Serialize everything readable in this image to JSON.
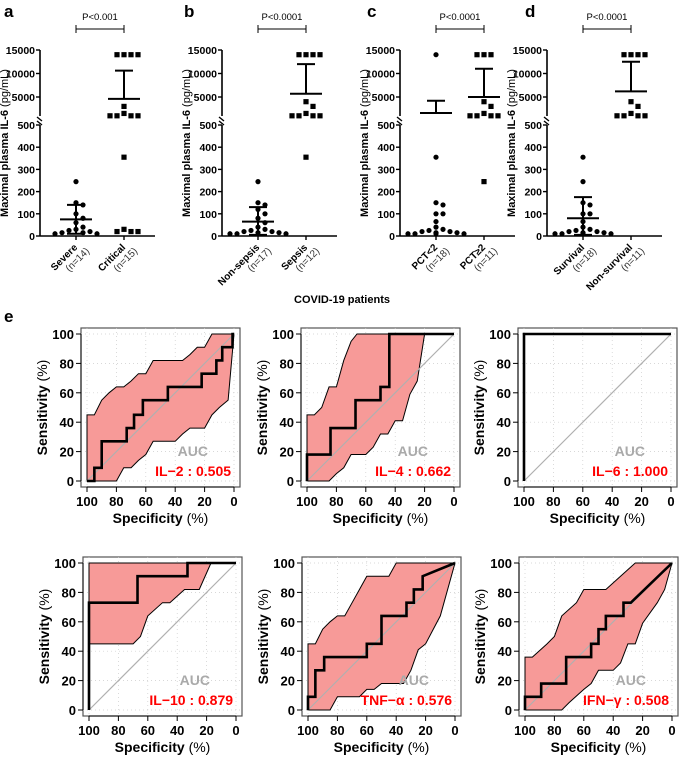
{
  "figure": {
    "panel_letters": [
      "a",
      "b",
      "c",
      "d",
      "e"
    ],
    "group_caption": "COVID-19 patients"
  },
  "colors": {
    "ink": "#000000",
    "band": "#f79a98",
    "auc_label": "#aaaaaa",
    "auc_value": "#ff0000",
    "grid": "#cccccc",
    "diagonal": "#b0b0b0"
  },
  "chart_data": [
    {
      "type": "scatter",
      "subtype": "dot-plot-broken-axis",
      "panel": "a",
      "ylabel_main": "Maximal plasma IL-6",
      "ylabel_unit": "(pg/mL)",
      "yticks_lower": [
        0,
        100,
        200,
        300,
        400,
        500
      ],
      "yticks_upper": [
        5000,
        10000,
        15000
      ],
      "ylim": [
        0,
        15000
      ],
      "axis_break": [
        500,
        800
      ],
      "pvalue": "P<0.001",
      "groups": [
        {
          "label": "Severe",
          "n": "(n=14)",
          "marker": "circle",
          "values": [
            245,
            150,
            140,
            100,
            80,
            60,
            40,
            30,
            25,
            20,
            15,
            15,
            10,
            10
          ],
          "mean": 75,
          "sd_upper": 140,
          "sd_lower": 10
        },
        {
          "label": "Critical",
          "n": "(n=15)",
          "marker": "square",
          "values": [
            14000,
            14000,
            14000,
            14000,
            3000,
            1500,
            1000,
            1000,
            1000,
            1000,
            355,
            30,
            20,
            20,
            20
          ],
          "mean": 4600,
          "sd_upper": 10600,
          "sd_lower": null
        }
      ]
    },
    {
      "type": "scatter",
      "subtype": "dot-plot-broken-axis",
      "panel": "b",
      "ylabel_main": "Maximal plasma IL-6",
      "ylabel_unit": "(pg/mL)",
      "yticks_lower": [
        0,
        100,
        200,
        300,
        400,
        500
      ],
      "yticks_upper": [
        5000,
        10000,
        15000
      ],
      "ylim": [
        0,
        15000
      ],
      "axis_break": [
        500,
        800
      ],
      "pvalue": "P<0.0001",
      "groups": [
        {
          "label": "Non-sepsis",
          "n": "(n=17)",
          "marker": "circle",
          "values": [
            245,
            150,
            140,
            120,
            100,
            80,
            60,
            40,
            30,
            25,
            20,
            20,
            15,
            15,
            10,
            10,
            10
          ],
          "mean": 65,
          "sd_upper": 130,
          "sd_lower": 5
        },
        {
          "label": "Sepsis",
          "n": "(n=12)",
          "marker": "square",
          "values": [
            14000,
            14000,
            14000,
            14000,
            4000,
            3000,
            1500,
            1000,
            1000,
            1000,
            1000,
            355
          ],
          "mean": 5700,
          "sd_upper": 12000,
          "sd_lower": null
        }
      ]
    },
    {
      "type": "scatter",
      "subtype": "dot-plot-broken-axis",
      "panel": "c",
      "ylabel_main": "Maximal plasma IL-6",
      "ylabel_unit": "(pg/mL)",
      "yticks_lower": [
        0,
        100,
        200,
        300,
        400,
        500
      ],
      "yticks_upper": [
        5000,
        10000,
        15000
      ],
      "ylim": [
        0,
        15000
      ],
      "axis_break": [
        500,
        800
      ],
      "pvalue": "P<0.0001",
      "groups": [
        {
          "label": "PCT<2",
          "n": "(n=18)",
          "marker": "circle",
          "values": [
            14000,
            355,
            150,
            140,
            100,
            100,
            65,
            40,
            30,
            25,
            20,
            20,
            15,
            15,
            10,
            10,
            10,
            10
          ],
          "mean": 1600,
          "sd_upper": 4200,
          "sd_lower": null
        },
        {
          "label": "PCT≥2",
          "n": "(n=11)",
          "marker": "square",
          "values": [
            14000,
            14000,
            14000,
            4000,
            3000,
            1500,
            1000,
            1000,
            1000,
            1000,
            245
          ],
          "mean": 5000,
          "sd_upper": 11000,
          "sd_lower": null
        }
      ]
    },
    {
      "type": "scatter",
      "subtype": "dot-plot-broken-axis",
      "panel": "d",
      "ylabel_main": "Maximal plasma IL-6",
      "ylabel_unit": "(pg/mL)",
      "yticks_lower": [
        0,
        100,
        200,
        300,
        400,
        500
      ],
      "yticks_upper": [
        5000,
        10000,
        15000
      ],
      "ylim": [
        0,
        15000
      ],
      "axis_break": [
        500,
        800
      ],
      "pvalue": "P<0.0001",
      "groups": [
        {
          "label": "Survival",
          "n": "(n=18)",
          "marker": "circle",
          "values": [
            355,
            245,
            150,
            140,
            100,
            100,
            65,
            40,
            30,
            25,
            20,
            20,
            15,
            15,
            10,
            10,
            10,
            10
          ],
          "mean": 80,
          "sd_upper": 175,
          "sd_lower": 5
        },
        {
          "label": "Non-survival",
          "n": "(n=11)",
          "marker": "square",
          "values": [
            14000,
            14000,
            14000,
            14000,
            4000,
            3000,
            1500,
            1000,
            1000,
            1000,
            1000
          ],
          "mean": 6200,
          "sd_upper": 12500,
          "sd_lower": null
        }
      ]
    },
    {
      "type": "line",
      "subtype": "roc",
      "panel": "e",
      "name": "IL-2",
      "auc_label": "AUC",
      "auc_text": "IL−2 : 0.505",
      "auc": 0.505,
      "xlabel_main": "Specificity",
      "xlabel_unit": "(%)",
      "ylabel_main": "Sensitivity",
      "ylabel_unit": "(%)",
      "xlim": [
        100,
        0
      ],
      "ylim": [
        0,
        100
      ],
      "ticks": [
        0,
        20,
        40,
        60,
        80,
        100
      ],
      "grid": true,
      "curve": [
        [
          100,
          0
        ],
        [
          95,
          0
        ],
        [
          95,
          9
        ],
        [
          90,
          9
        ],
        [
          90,
          27
        ],
        [
          73,
          27
        ],
        [
          73,
          36
        ],
        [
          68,
          36
        ],
        [
          68,
          45
        ],
        [
          62,
          45
        ],
        [
          62,
          55
        ],
        [
          45,
          55
        ],
        [
          45,
          64
        ],
        [
          22,
          64
        ],
        [
          22,
          73
        ],
        [
          12,
          73
        ],
        [
          12,
          82
        ],
        [
          8,
          82
        ],
        [
          8,
          91
        ],
        [
          1,
          91
        ],
        [
          1,
          100
        ],
        [
          0,
          100
        ]
      ],
      "ci_upper": [
        [
          100,
          45
        ],
        [
          95,
          45
        ],
        [
          90,
          55
        ],
        [
          85,
          60
        ],
        [
          80,
          64
        ],
        [
          75,
          64
        ],
        [
          70,
          68
        ],
        [
          65,
          73
        ],
        [
          60,
          73
        ],
        [
          55,
          82
        ],
        [
          35,
          82
        ],
        [
          30,
          86
        ],
        [
          25,
          91
        ],
        [
          20,
          91
        ],
        [
          15,
          100
        ],
        [
          0,
          100
        ]
      ],
      "ci_lower": [
        [
          100,
          0
        ],
        [
          80,
          0
        ],
        [
          75,
          9
        ],
        [
          70,
          9
        ],
        [
          65,
          14
        ],
        [
          60,
          18
        ],
        [
          55,
          27
        ],
        [
          40,
          27
        ],
        [
          35,
          32
        ],
        [
          30,
          36
        ],
        [
          20,
          36
        ],
        [
          15,
          45
        ],
        [
          10,
          50
        ],
        [
          4,
          55
        ],
        [
          0,
          100
        ]
      ]
    },
    {
      "type": "line",
      "subtype": "roc",
      "panel": "e",
      "name": "IL-4",
      "auc_label": "AUC",
      "auc_text": "IL−4 : 0.662",
      "auc": 0.662,
      "xlabel_main": "Specificity",
      "xlabel_unit": "(%)",
      "ylabel_main": "Sensitivity",
      "ylabel_unit": "(%)",
      "xlim": [
        100,
        0
      ],
      "ylim": [
        0,
        100
      ],
      "ticks": [
        0,
        20,
        40,
        60,
        80,
        100
      ],
      "grid": true,
      "curve": [
        [
          100,
          0
        ],
        [
          100,
          18
        ],
        [
          84,
          18
        ],
        [
          84,
          36
        ],
        [
          67,
          36
        ],
        [
          67,
          55
        ],
        [
          50,
          55
        ],
        [
          50,
          64
        ],
        [
          44,
          64
        ],
        [
          44,
          100
        ],
        [
          0,
          100
        ]
      ],
      "ci_upper": [
        [
          100,
          45
        ],
        [
          95,
          45
        ],
        [
          90,
          50
        ],
        [
          85,
          64
        ],
        [
          80,
          64
        ],
        [
          75,
          82
        ],
        [
          70,
          95
        ],
        [
          66,
          100
        ],
        [
          20,
          100
        ]
      ],
      "ci_lower": [
        [
          100,
          0
        ],
        [
          85,
          0
        ],
        [
          80,
          5
        ],
        [
          75,
          9
        ],
        [
          70,
          18
        ],
        [
          60,
          18
        ],
        [
          55,
          23
        ],
        [
          50,
          32
        ],
        [
          45,
          32
        ],
        [
          40,
          41
        ],
        [
          35,
          41
        ],
        [
          30,
          59
        ],
        [
          25,
          68
        ],
        [
          20,
          100
        ]
      ]
    },
    {
      "type": "line",
      "subtype": "roc",
      "panel": "e",
      "name": "IL-6",
      "auc_label": "AUC",
      "auc_text": "IL−6 : 1.000",
      "auc": 1.0,
      "xlabel_main": "Specificity",
      "xlabel_unit": "(%)",
      "ylabel_main": "Sensitivity",
      "ylabel_unit": "(%)",
      "xlim": [
        100,
        0
      ],
      "ylim": [
        0,
        100
      ],
      "ticks": [
        0,
        20,
        40,
        60,
        80,
        100
      ],
      "grid": true,
      "curve": [
        [
          100,
          0
        ],
        [
          100,
          100
        ],
        [
          0,
          100
        ]
      ],
      "ci_upper": [
        [
          100,
          100
        ],
        [
          0,
          100
        ]
      ],
      "ci_lower": [
        [
          100,
          100
        ],
        [
          0,
          100
        ]
      ]
    },
    {
      "type": "line",
      "subtype": "roc",
      "panel": "e",
      "name": "IL-10",
      "auc_label": "AUC",
      "auc_text": "IL−10 : 0.879",
      "auc": 0.879,
      "xlabel_main": "Specificity",
      "xlabel_unit": "(%)",
      "ylabel_main": "Sensitivity",
      "ylabel_unit": "(%)",
      "xlim": [
        100,
        0
      ],
      "ylim": [
        0,
        100
      ],
      "ticks": [
        0,
        20,
        40,
        60,
        80,
        100
      ],
      "grid": true,
      "curve": [
        [
          100,
          0
        ],
        [
          100,
          73
        ],
        [
          67,
          73
        ],
        [
          67,
          91
        ],
        [
          33,
          91
        ],
        [
          33,
          100
        ],
        [
          0,
          100
        ]
      ],
      "ci_upper": [
        [
          100,
          100
        ],
        [
          17,
          100
        ]
      ],
      "ci_lower": [
        [
          100,
          45
        ],
        [
          70,
          45
        ],
        [
          65,
          50
        ],
        [
          60,
          64
        ],
        [
          50,
          73
        ],
        [
          45,
          73
        ],
        [
          35,
          82
        ],
        [
          25,
          82
        ],
        [
          17,
          100
        ]
      ]
    },
    {
      "type": "line",
      "subtype": "roc",
      "panel": "e",
      "name": "TNF-α",
      "auc_label": "AUC",
      "auc_text": "TNF−α : 0.576",
      "auc": 0.576,
      "xlabel_main": "Specificity",
      "xlabel_unit": "(%)",
      "ylabel_main": "Sensitivity",
      "ylabel_unit": "(%)",
      "xlim": [
        100,
        0
      ],
      "ylim": [
        0,
        100
      ],
      "ticks": [
        0,
        20,
        40,
        60,
        80,
        100
      ],
      "grid": true,
      "curve": [
        [
          100,
          0
        ],
        [
          100,
          9
        ],
        [
          95,
          9
        ],
        [
          95,
          27
        ],
        [
          89,
          27
        ],
        [
          89,
          36
        ],
        [
          60,
          36
        ],
        [
          60,
          45
        ],
        [
          50,
          45
        ],
        [
          50,
          64
        ],
        [
          33,
          64
        ],
        [
          33,
          73
        ],
        [
          28,
          73
        ],
        [
          28,
          82
        ],
        [
          22,
          82
        ],
        [
          22,
          91
        ],
        [
          0,
          100
        ]
      ],
      "ci_upper": [
        [
          100,
          45
        ],
        [
          95,
          45
        ],
        [
          90,
          55
        ],
        [
          85,
          60
        ],
        [
          80,
          64
        ],
        [
          75,
          64
        ],
        [
          70,
          73
        ],
        [
          65,
          82
        ],
        [
          60,
          91
        ],
        [
          45,
          91
        ],
        [
          40,
          100
        ],
        [
          0,
          100
        ]
      ],
      "ci_lower": [
        [
          100,
          0
        ],
        [
          85,
          0
        ],
        [
          80,
          9
        ],
        [
          65,
          9
        ],
        [
          60,
          14
        ],
        [
          55,
          14
        ],
        [
          50,
          18
        ],
        [
          35,
          18
        ],
        [
          30,
          27
        ],
        [
          25,
          41
        ],
        [
          20,
          45
        ],
        [
          10,
          64
        ],
        [
          0,
          100
        ]
      ]
    },
    {
      "type": "line",
      "subtype": "roc",
      "panel": "e",
      "name": "IFN-γ",
      "auc_label": "AUC",
      "auc_text": "IFN−γ : 0.508",
      "auc": 0.508,
      "xlabel_main": "Specificity",
      "xlabel_unit": "(%)",
      "ylabel_main": "Sensitivity",
      "ylabel_unit": "(%)",
      "xlim": [
        100,
        0
      ],
      "ylim": [
        0,
        100
      ],
      "ticks": [
        0,
        20,
        40,
        60,
        80,
        100
      ],
      "grid": true,
      "curve": [
        [
          100,
          0
        ],
        [
          100,
          9
        ],
        [
          89,
          9
        ],
        [
          89,
          18
        ],
        [
          72,
          18
        ],
        [
          72,
          36
        ],
        [
          55,
          36
        ],
        [
          55,
          45
        ],
        [
          50,
          45
        ],
        [
          50,
          55
        ],
        [
          45,
          55
        ],
        [
          45,
          64
        ],
        [
          33,
          64
        ],
        [
          33,
          73
        ],
        [
          28,
          73
        ],
        [
          0,
          100
        ]
      ],
      "ci_upper": [
        [
          100,
          36
        ],
        [
          95,
          36
        ],
        [
          85,
          45
        ],
        [
          80,
          50
        ],
        [
          75,
          64
        ],
        [
          65,
          73
        ],
        [
          60,
          82
        ],
        [
          45,
          82
        ],
        [
          35,
          91
        ],
        [
          25,
          100
        ],
        [
          0,
          100
        ]
      ],
      "ci_lower": [
        [
          100,
          0
        ],
        [
          75,
          0
        ],
        [
          70,
          5
        ],
        [
          60,
          14
        ],
        [
          55,
          18
        ],
        [
          50,
          27
        ],
        [
          40,
          27
        ],
        [
          35,
          32
        ],
        [
          30,
          45
        ],
        [
          25,
          45
        ],
        [
          20,
          59
        ],
        [
          10,
          73
        ],
        [
          5,
          82
        ],
        [
          0,
          100
        ]
      ]
    }
  ]
}
